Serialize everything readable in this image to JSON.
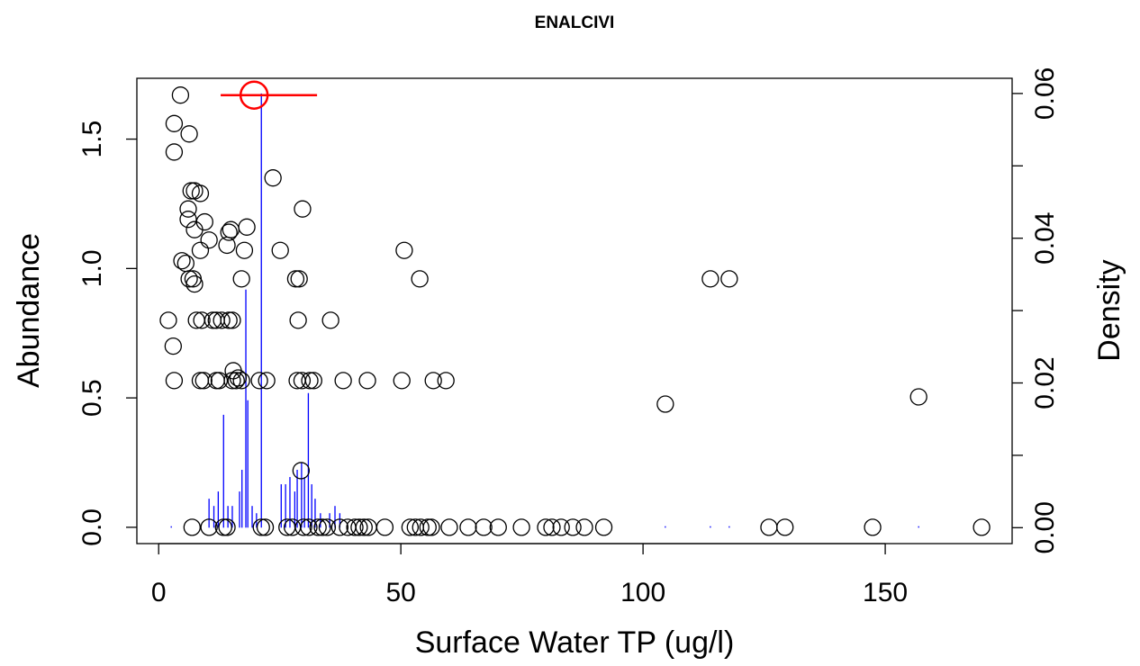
{
  "chart_data": {
    "type": "scatter",
    "title": "ENALCIVI",
    "x_label": "Surface Water TP (ug/l)",
    "y_label": "Abundance",
    "y2_label": "Density",
    "xlim": [
      -4.5,
      176.2
    ],
    "ylim": [
      -0.063,
      1.735
    ],
    "y2lim": [
      -0.0022,
      0.0621
    ],
    "xticks": [
      0,
      50,
      100,
      150
    ],
    "yticks": [
      {
        "value": 0,
        "label": "0.0"
      },
      {
        "value": 0.5,
        "label": "0.5"
      },
      {
        "value": 1,
        "label": "1.0"
      },
      {
        "value": 1.5,
        "label": "1.5"
      }
    ],
    "y2ticks": [
      {
        "value": 0,
        "label": "0.00"
      },
      {
        "value": 0.01,
        "label": null
      },
      {
        "value": 0.02,
        "label": "0.02"
      },
      {
        "value": 0.03,
        "label": null
      },
      {
        "value": 0.04,
        "label": "0.04"
      },
      {
        "value": 0.05,
        "label": null
      },
      {
        "value": 0.06,
        "label": "0.06"
      }
    ],
    "series": [
      {
        "type": "scatter",
        "color": "#000000",
        "x": [
          4.5,
          3.2,
          6.3,
          3.2,
          23.6,
          6.7,
          7.4,
          8.6,
          29.7,
          6.1,
          6.1,
          9.5,
          14.9,
          14.5,
          18.2,
          7.4,
          10.4,
          14.1,
          17.7,
          25.1,
          50.7,
          8.6,
          4.8,
          5.6,
          6.3,
          7.1,
          7.4,
          17.1,
          28.3,
          29.0,
          53.9,
          113.9,
          117.8,
          2.0,
          7.8,
          8.9,
          11.2,
          11.9,
          13.0,
          14.5,
          15.2,
          28.8,
          35.5,
          3.0,
          15.4,
          16.4,
          3.2,
          8.6,
          9.3,
          11.9,
          12.5,
          15.2,
          16.0,
          17.1,
          20.8,
          22.3,
          28.6,
          29.6,
          31.2,
          32.0,
          38.1,
          43.1,
          50.2,
          56.7,
          59.3,
          104.6,
          156.9,
          29.4,
          6.9,
          10.4,
          13.4,
          14.1,
          21.2,
          22.0,
          26.5,
          27.6,
          29.9,
          31.0,
          32.9,
          33.8,
          34.8,
          37.4,
          39.0,
          40.5,
          41.4,
          42.4,
          43.3,
          46.7,
          51.9,
          53.0,
          54.1,
          55.6,
          56.3,
          60.0,
          63.9,
          67.1,
          70.1,
          74.9,
          79.9,
          81.2,
          83.1,
          85.5,
          87.9,
          91.9,
          126.0,
          129.3,
          147.4,
          169.9
        ],
        "values": [
          1.67,
          1.56,
          1.52,
          1.45,
          1.35,
          1.3,
          1.3,
          1.29,
          1.23,
          1.23,
          1.19,
          1.18,
          1.15,
          1.14,
          1.16,
          1.15,
          1.11,
          1.09,
          1.07,
          1.07,
          1.07,
          1.07,
          1.03,
          1.02,
          0.96,
          0.96,
          0.94,
          0.96,
          0.96,
          0.96,
          0.96,
          0.96,
          0.96,
          0.8,
          0.8,
          0.8,
          0.8,
          0.8,
          0.8,
          0.8,
          0.8,
          0.8,
          0.8,
          0.7,
          0.605,
          0.577,
          0.567,
          0.567,
          0.567,
          0.567,
          0.567,
          0.567,
          0.567,
          0.567,
          0.567,
          0.567,
          0.567,
          0.567,
          0.567,
          0.567,
          0.567,
          0.567,
          0.567,
          0.567,
          0.567,
          0.476,
          0.504,
          0.219,
          0,
          0,
          0,
          0,
          0,
          0,
          0,
          0,
          0,
          0,
          0,
          0,
          0,
          0,
          0,
          0,
          0,
          0,
          0,
          0,
          0,
          0,
          0,
          0,
          0,
          0,
          0,
          0,
          0,
          0,
          0,
          0,
          0,
          0,
          0,
          0,
          0,
          0,
          0,
          0
        ]
      },
      {
        "type": "spike",
        "axis": "y2",
        "color": "#0000ff",
        "x": [
          2.6,
          10.4,
          11.4,
          12.3,
          13.4,
          14.3,
          15.2,
          16.7,
          17.2,
          18.0,
          18.4,
          19.3,
          20.2,
          21.2,
          25.3,
          26.2,
          27.1,
          28.1,
          28.6,
          29.5,
          30.1,
          30.9,
          31.6,
          32.3,
          33.4,
          35.3,
          36.4,
          37.4,
          104.6,
          113.9,
          117.8,
          156.9
        ],
        "values": [
          0.0002,
          0.004,
          0.003,
          0.005,
          0.0156,
          0.003,
          0.003,
          0.005,
          0.008,
          0.0329,
          0.0176,
          0.003,
          0.002,
          0.06,
          0.006,
          0.006,
          0.007,
          0.005,
          0.008,
          0.009,
          0.007,
          0.0186,
          0.006,
          0.004,
          0.002,
          0.002,
          0.003,
          0.002,
          0.0002,
          0.0002,
          0.0002,
          0.0002
        ]
      }
    ],
    "optimum": {
      "value": 19.7,
      "y": 1.67,
      "interval": [
        12.8,
        32.7
      ],
      "color": "#ff0000"
    }
  }
}
